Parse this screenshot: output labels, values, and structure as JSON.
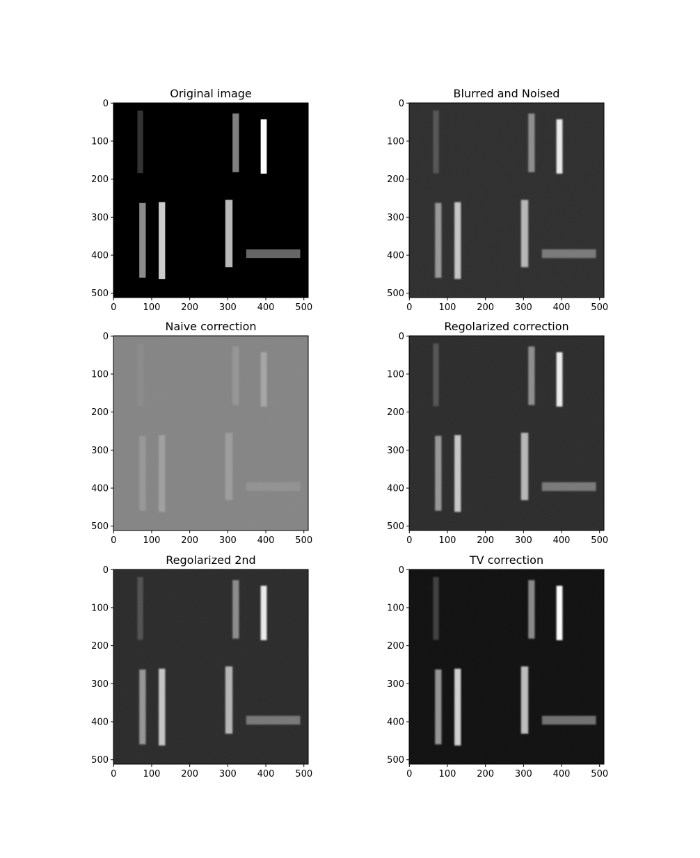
{
  "chart_data": {
    "type": "image_grid",
    "image_extent": [
      0,
      511,
      511,
      0
    ],
    "x_ticks": [
      0,
      100,
      200,
      300,
      400,
      500
    ],
    "y_ticks": [
      0,
      100,
      200,
      300,
      400,
      500
    ],
    "bars": [
      {
        "x0": 63,
        "x1": 78,
        "y0": 20,
        "y1": 185,
        "level": 0.2
      },
      {
        "x0": 313,
        "x1": 330,
        "y0": 28,
        "y1": 182,
        "level": 0.5
      },
      {
        "x0": 387,
        "x1": 403,
        "y0": 43,
        "y1": 186,
        "level": 1.0
      },
      {
        "x0": 68,
        "x1": 85,
        "y0": 263,
        "y1": 460,
        "level": 0.55
      },
      {
        "x0": 119,
        "x1": 136,
        "y0": 261,
        "y1": 463,
        "level": 0.8
      },
      {
        "x0": 294,
        "x1": 313,
        "y0": 255,
        "y1": 432,
        "level": 0.72
      },
      {
        "x0": 349,
        "x1": 491,
        "y0": 385,
        "y1": 408,
        "level": 0.4
      }
    ],
    "panels": [
      {
        "title": "Original image",
        "background": "#000000",
        "bar_min": "#000000",
        "bar_max": "#ffffff",
        "noise": 0
      },
      {
        "title": "Blurred and Noised",
        "background": "#2e2e2e",
        "bar_min": "#2e2e2e",
        "bar_max": "#ececec",
        "noise": 0.05
      },
      {
        "title": "Naive correction",
        "background": "#868686",
        "bar_min": "#868686",
        "bar_max": "#a6a6a6",
        "noise": 0.02
      },
      {
        "title": "Regolarized correction",
        "background": "#2b2b2b",
        "bar_min": "#2b2b2b",
        "bar_max": "#eeeeee",
        "noise": 0.06
      },
      {
        "title": "Regolarized 2nd",
        "background": "#2a2a2a",
        "bar_min": "#2a2a2a",
        "bar_max": "#ececec",
        "noise": 0.06
      },
      {
        "title": "TV correction",
        "background": "#121212",
        "bar_min": "#121212",
        "bar_max": "#ffffff",
        "noise": 0.02
      }
    ]
  }
}
